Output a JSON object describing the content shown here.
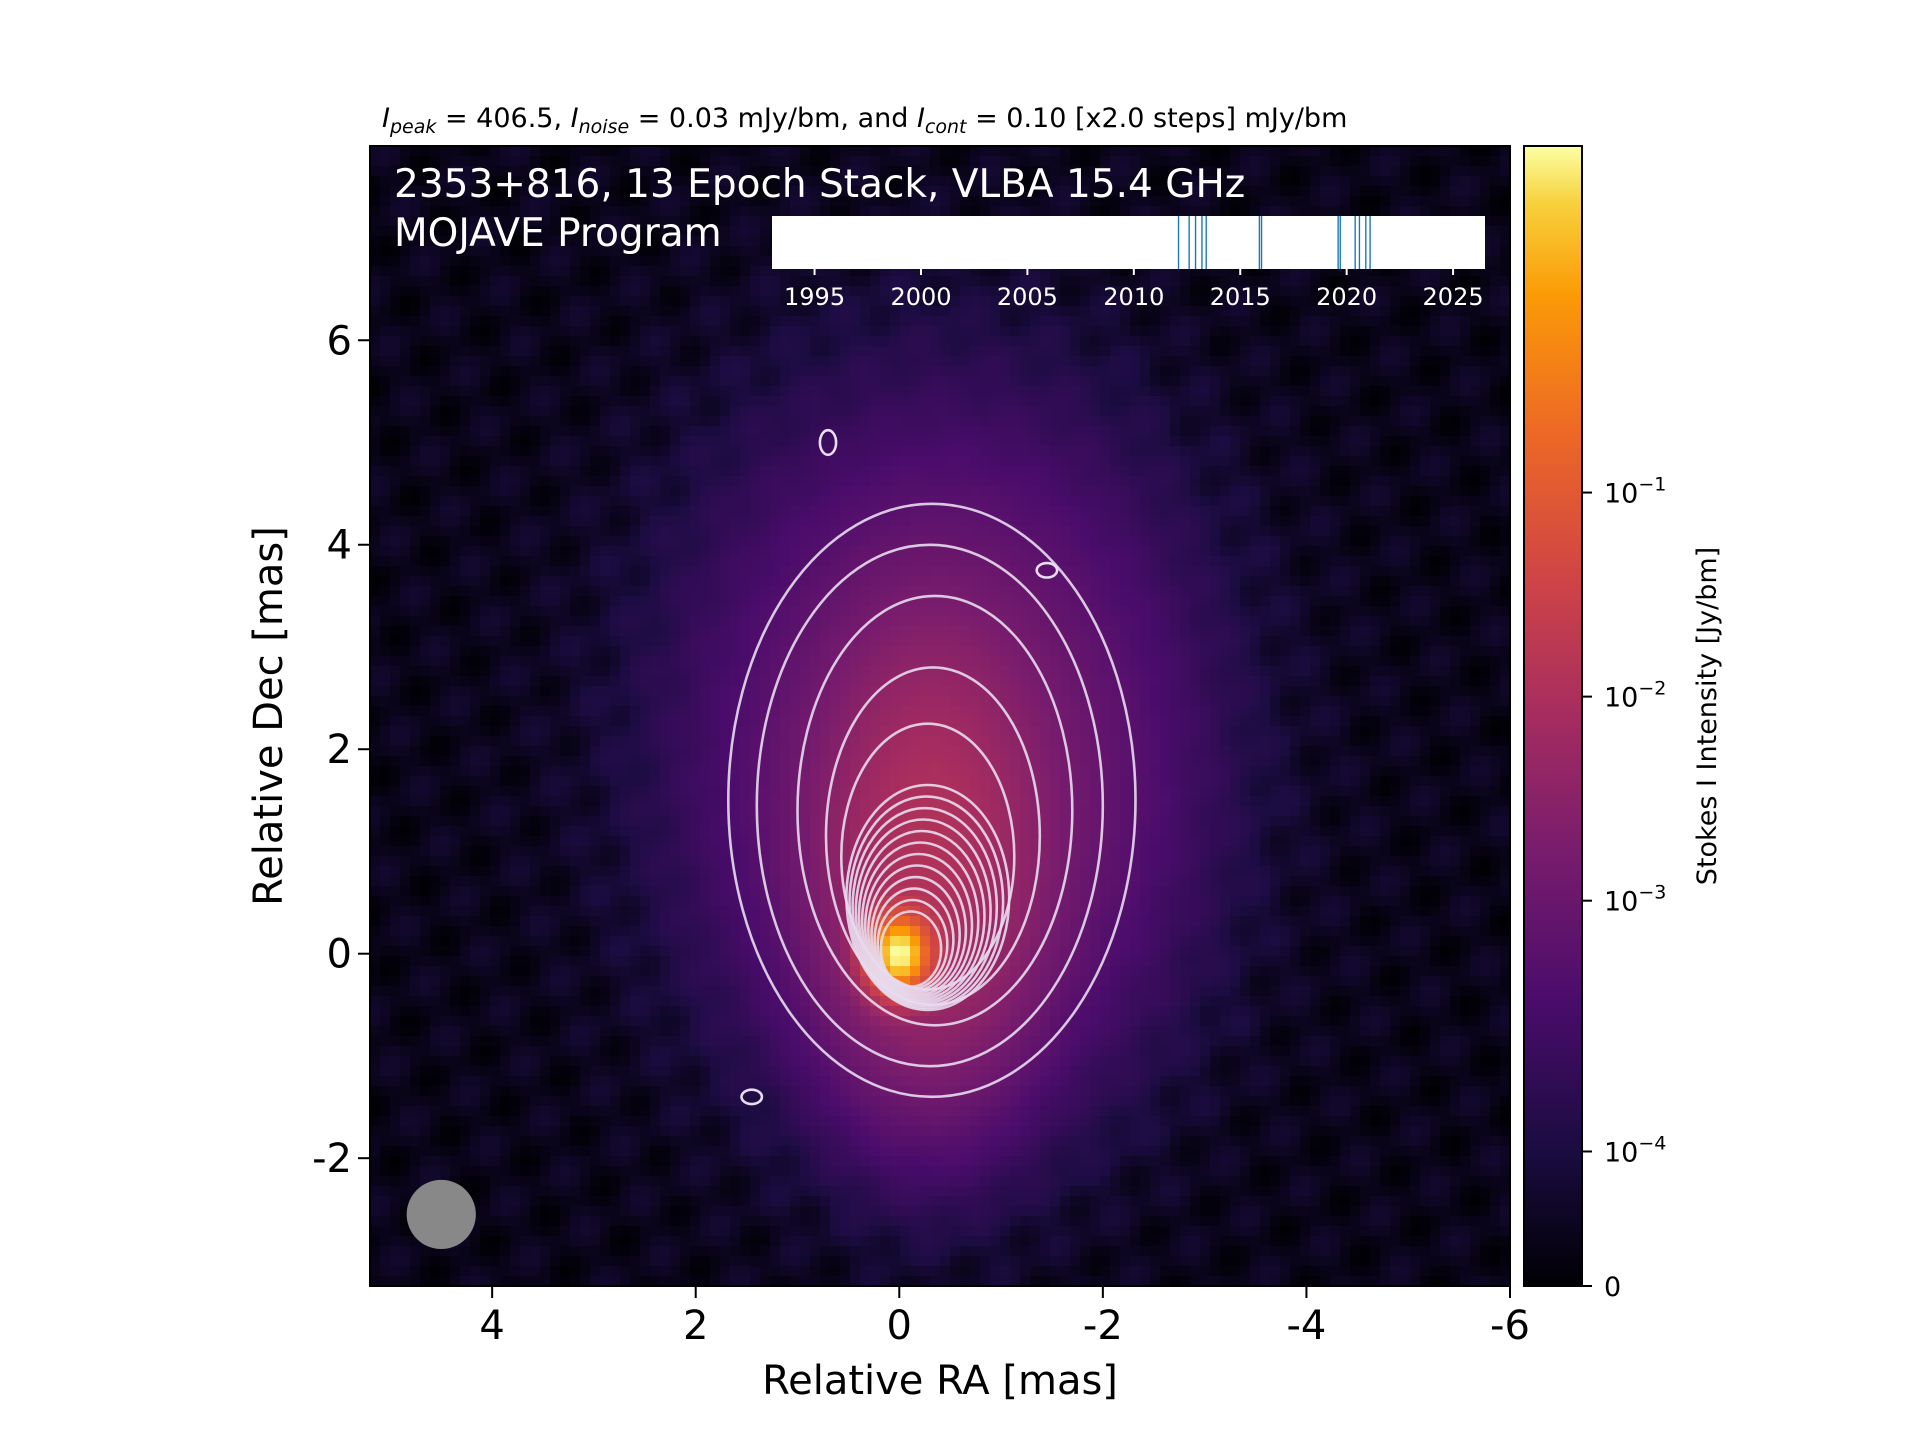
{
  "chart_data": {
    "type": "heatmap",
    "top_caption": {
      "peak_sym": "I",
      "peak_sub": "peak",
      "peak_val": " = 406.5, ",
      "noise_sym": "I",
      "noise_sub": "noise",
      "noise_val": " = 0.03 mJy/bm, and ",
      "cont_sym": "I",
      "cont_sub": "cont",
      "cont_val": " = 0.10 [x2.0 steps] mJy/bm"
    },
    "title_line1": "2353+816, 13 Epoch Stack, VLBA 15.4 GHz",
    "title_line2": "MOJAVE Program",
    "xlabel": "Relative RA [mas]",
    "ylabel": "Relative Dec [mas]",
    "xlim": [
      5.2,
      -6
    ],
    "ylim": [
      -3.25,
      7.9
    ],
    "x_ticks": [
      4,
      2,
      0,
      -2,
      -4,
      -6
    ],
    "y_ticks": [
      -2,
      0,
      2,
      4,
      6
    ],
    "colormap": "inferno",
    "colorbar": {
      "label": "Stokes I Intensity [Jy/bm]",
      "scale": "symlog",
      "ticks": [
        {
          "label": "0",
          "value": 0
        },
        {
          "label": "10",
          "exp": "−4",
          "value": 0.0001
        },
        {
          "label": "10",
          "exp": "−3",
          "value": 0.001
        },
        {
          "label": "10",
          "exp": "−2",
          "value": 0.01
        },
        {
          "label": "10",
          "exp": "−1",
          "value": 0.1
        }
      ],
      "range": [
        0,
        0.4065
      ]
    },
    "epoch_timeline": {
      "xlim": [
        1993,
        2026.5
      ],
      "ticks": [
        1995,
        2000,
        2005,
        2010,
        2015,
        2020,
        2025
      ],
      "epochs": [
        2012.1,
        2012.6,
        2012.9,
        2013.2,
        2013.4,
        2015.9,
        2016.0,
        2019.6,
        2019.7,
        2020.4,
        2020.6,
        2020.9,
        2021.1
      ],
      "line_color": "#1f77b4"
    },
    "beam": {
      "ra": 4.5,
      "dec": -2.55,
      "major_mas": 0.68,
      "color": "#888888"
    },
    "contour_base_mJy": 0.1,
    "contour_step": 2.0
  }
}
